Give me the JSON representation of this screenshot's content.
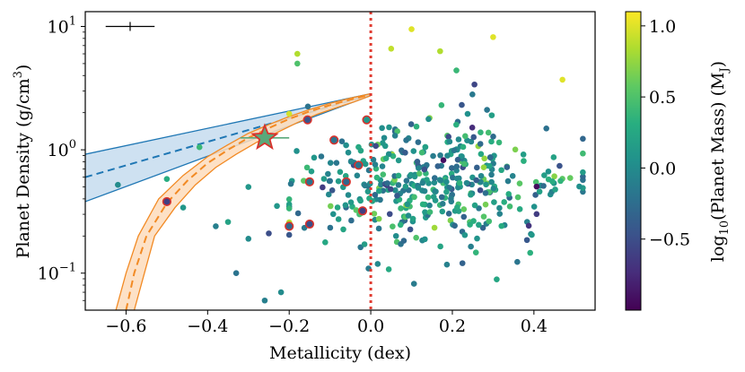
{
  "chart_data": {
    "type": "scatter",
    "title": "",
    "xlabel": "Metallicity (dex)",
    "ylabel": "Planet Density (g/cm³)",
    "ylabel_parts": [
      "Planet Density (g/cm",
      "3",
      ")"
    ],
    "xlim": [
      -0.7,
      0.55
    ],
    "ylim_log10": [
      -1.3,
      1.12
    ],
    "x_ticks": [
      {
        "value": -0.6,
        "label": "−0.6"
      },
      {
        "value": -0.4,
        "label": "−0.4"
      },
      {
        "value": -0.2,
        "label": "−0.2"
      },
      {
        "value": 0.0,
        "label": "0.0"
      },
      {
        "value": 0.2,
        "label": "0.2"
      },
      {
        "value": 0.4,
        "label": "0.4"
      }
    ],
    "y_ticks": [
      {
        "log": -1,
        "base": "10",
        "exp": "−1"
      },
      {
        "log": 0,
        "base": "10",
        "exp": "0"
      },
      {
        "log": 1,
        "base": "10",
        "exp": "1"
      }
    ],
    "colorbar": {
      "label_parts": [
        "log",
        "10",
        "(Planet Mass) (M",
        "J",
        ")"
      ],
      "range": [
        -1.0,
        1.1
      ],
      "colormap": "viridis",
      "ticks": [
        {
          "value": 1.0,
          "label": "1.0"
        },
        {
          "value": 0.5,
          "label": "0.5"
        },
        {
          "value": 0.0,
          "label": "0.0"
        },
        {
          "value": -0.5,
          "label": "−0.5"
        }
      ]
    },
    "vline": {
      "x": 0.0,
      "color": "#e03c31",
      "style": "dotted"
    },
    "star_point": {
      "x": -0.26,
      "y": 1.25,
      "xerr": 0.06,
      "color": "#5aa97a",
      "edge": "#d8322c"
    },
    "error_example": {
      "x_start": -0.65,
      "x_end": -0.53,
      "y": 10.0
    },
    "fits": {
      "blue": {
        "color": "#1f77b4",
        "fill": "#c6dcef",
        "x_start": -0.7,
        "x_end": 0.0,
        "y_start": 0.6,
        "y_end": 2.8,
        "lower_start": 0.38,
        "upper_start": 0.92,
        "lower_end": 2.75,
        "upper_end": 2.85
      },
      "orange": {
        "color": "#f28a24",
        "fill": "#fddcbc",
        "center": [
          [
            -0.6,
            0.05
          ],
          [
            -0.58,
            0.1
          ],
          [
            -0.55,
            0.2
          ],
          [
            -0.5,
            0.37
          ],
          [
            -0.45,
            0.56
          ],
          [
            -0.4,
            0.78
          ],
          [
            -0.35,
            1.0
          ],
          [
            -0.3,
            1.25
          ],
          [
            -0.25,
            1.5
          ],
          [
            -0.2,
            1.78
          ],
          [
            -0.15,
            2.05
          ],
          [
            -0.1,
            2.3
          ],
          [
            -0.05,
            2.55
          ],
          [
            0.0,
            2.8
          ]
        ],
        "upper": [
          [
            -0.625,
            0.05
          ],
          [
            -0.6,
            0.1
          ],
          [
            -0.57,
            0.2
          ],
          [
            -0.52,
            0.4
          ],
          [
            -0.46,
            0.62
          ],
          [
            -0.4,
            0.88
          ],
          [
            -0.35,
            1.1
          ],
          [
            -0.3,
            1.36
          ],
          [
            -0.25,
            1.6
          ],
          [
            -0.2,
            1.86
          ],
          [
            -0.15,
            2.12
          ],
          [
            -0.1,
            2.38
          ],
          [
            -0.05,
            2.62
          ],
          [
            0.0,
            2.85
          ]
        ],
        "lower": [
          [
            -0.58,
            0.05
          ],
          [
            -0.555,
            0.1
          ],
          [
            -0.53,
            0.2
          ],
          [
            -0.48,
            0.34
          ],
          [
            -0.43,
            0.52
          ],
          [
            -0.38,
            0.72
          ],
          [
            -0.33,
            0.92
          ],
          [
            -0.28,
            1.15
          ],
          [
            -0.23,
            1.38
          ],
          [
            -0.18,
            1.66
          ],
          [
            -0.13,
            1.95
          ],
          [
            -0.08,
            2.22
          ],
          [
            -0.04,
            2.45
          ],
          [
            0.0,
            2.75
          ]
        ]
      }
    },
    "highlighted": [
      {
        "x": -0.5,
        "y": 0.38,
        "c": -0.6
      },
      {
        "x": -0.2,
        "y": 0.24,
        "c": -0.3
      },
      {
        "x": -0.155,
        "y": 1.75,
        "c": -0.45
      },
      {
        "x": -0.15,
        "y": 0.55,
        "c": -0.2
      },
      {
        "x": -0.15,
        "y": 0.25,
        "c": -0.5
      },
      {
        "x": -0.09,
        "y": 1.2,
        "c": -0.2
      },
      {
        "x": -0.06,
        "y": 0.55,
        "c": -0.3
      },
      {
        "x": -0.03,
        "y": 0.75,
        "c": -0.2
      },
      {
        "x": -0.02,
        "y": 0.32,
        "c": -0.6
      },
      {
        "x": -0.01,
        "y": 1.75,
        "c": 0.1
      }
    ],
    "outlier_points": [
      {
        "x": 0.1,
        "y": 9.5,
        "c": 1.0
      },
      {
        "x": 0.3,
        "y": 8.2,
        "c": 1.0
      },
      {
        "x": 0.05,
        "y": 6.6,
        "c": 0.9
      },
      {
        "x": 0.17,
        "y": 6.3,
        "c": 0.85
      },
      {
        "x": 0.47,
        "y": 3.7,
        "c": 1.0
      },
      {
        "x": 0.21,
        "y": 4.4,
        "c": 0.4
      },
      {
        "x": -0.18,
        "y": 6.0,
        "c": 0.85
      },
      {
        "x": -0.18,
        "y": 5.0,
        "c": 0.5
      },
      {
        "x": -0.62,
        "y": 0.52,
        "c": 0.0
      },
      {
        "x": -0.5,
        "y": 0.58,
        "c": 0.3
      },
      {
        "x": -0.46,
        "y": 0.34,
        "c": 0.1
      },
      {
        "x": -0.42,
        "y": 1.05,
        "c": 0.4
      },
      {
        "x": -0.38,
        "y": 0.24,
        "c": -0.1
      },
      {
        "x": -0.35,
        "y": 0.26,
        "c": 0.2
      },
      {
        "x": -0.33,
        "y": 0.1,
        "c": -0.2
      },
      {
        "x": -0.3,
        "y": 0.19,
        "c": 0.0
      },
      {
        "x": -0.3,
        "y": 0.5,
        "c": 0.1
      },
      {
        "x": -0.26,
        "y": 0.06,
        "c": -0.1
      },
      {
        "x": -0.25,
        "y": 0.21,
        "c": -0.5
      },
      {
        "x": -0.22,
        "y": 0.07,
        "c": 0.0
      },
      {
        "x": -0.23,
        "y": 0.35,
        "c": 0.1
      }
    ],
    "cluster": {
      "count": 420,
      "x_mean": 0.14,
      "x_sd": 0.16,
      "x_min": -0.2,
      "x_max": 0.52,
      "log_mean": -0.28,
      "log_sd": 0.28,
      "log_min": -1.15,
      "log_max": 0.62,
      "c_mean": 0.05,
      "c_sd": 0.32,
      "seed": 12345
    }
  }
}
